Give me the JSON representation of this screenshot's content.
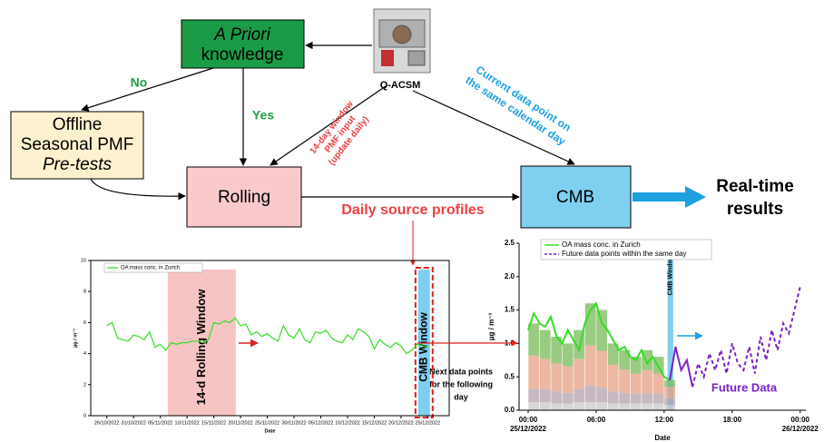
{
  "nodes": {
    "apriori": {
      "italic": "A Priori",
      "label": "knowledge"
    },
    "qacsm": "Q-ACSM",
    "offline": {
      "line1": "Offline",
      "line2": "Seasonal PMF",
      "line3": "Pre-tests"
    },
    "rolling": "Rolling",
    "cmb": "CMB",
    "realtime": {
      "line1": "Real-time",
      "line2": "results"
    }
  },
  "edges": {
    "no": "No",
    "yes": "Yes",
    "pmf_input": [
      "14-day window",
      "PMF input",
      "(update daily)"
    ],
    "current": [
      "Current data point on",
      "the same calendar day"
    ]
  },
  "annotations": {
    "daily_profiles": "Daily source profiles",
    "next_points": [
      "Next data points",
      "for the following",
      "day"
    ],
    "future_data": "Future Data"
  },
  "charts": [
    {
      "type": "line",
      "legend": "OA mass conc. in Zurich",
      "ylabel": "µg / m⁻³",
      "xlabel": "Date",
      "window_label": "14-d Rolling Window",
      "cmb_label": "CMB Window",
      "color": "#33dd22",
      "values": [
        5.8,
        6.0,
        5.0,
        4.9,
        4.8,
        5.2,
        5.1,
        4.9,
        5.4,
        4.4,
        4.6,
        4.2,
        4.7,
        4.6,
        4.7,
        4.7,
        4.8,
        4.8,
        4.7,
        4.9,
        6.0,
        5.9,
        6.1,
        6.0,
        6.3,
        5.8,
        5.9,
        5.2,
        5.4,
        5.1,
        5.3,
        5.0,
        4.8,
        5.8,
        5.2,
        5.0,
        5.6,
        4.9,
        4.7,
        5.4,
        5.3,
        5.5,
        5.0,
        4.8,
        4.7,
        5.2,
        4.9,
        5.6,
        5.4,
        5.1,
        4.3,
        4.9,
        4.6,
        4.4,
        4.7,
        4.5,
        4.0,
        4.2,
        4.6,
        4.5,
        4.4
      ],
      "xlim": [
        -3,
        64
      ],
      "xticks": [
        {
          "value": 0,
          "label": "26/10/2022"
        },
        {
          "value": 5,
          "label": "31/10/2022"
        },
        {
          "value": 10,
          "label": "05/11/2022"
        },
        {
          "value": 15,
          "label": "10/11/2022"
        },
        {
          "value": 20,
          "label": "15/11/2022"
        },
        {
          "value": 25,
          "label": "20/11/2022"
        },
        {
          "value": 30,
          "label": "25/11/2022"
        },
        {
          "value": 35,
          "label": "30/11/2022"
        },
        {
          "value": 40,
          "label": "05/12/2022"
        },
        {
          "value": 45,
          "label": "10/12/2022"
        },
        {
          "value": 50,
          "label": "15/12/2022"
        },
        {
          "value": 55,
          "label": "20/12/2022"
        },
        {
          "value": 60,
          "label": "25/12/2022"
        }
      ],
      "ylim": [
        0,
        10
      ],
      "yticks": [
        0,
        2,
        4,
        6,
        8,
        10
      ]
    },
    {
      "type": "line",
      "ylabel": "µg / m⁻³",
      "xlabel": "Date",
      "cmb_label": "CMB Window",
      "xlim": [
        -0.8,
        24.5
      ],
      "xticks": [
        {
          "value": 0,
          "label": "00:00"
        },
        {
          "value": 6,
          "label": "06:00"
        },
        {
          "value": 12,
          "label": "12:00"
        },
        {
          "value": 18,
          "label": "18:00"
        },
        {
          "value": 24,
          "label": "00:00"
        }
      ],
      "xtick_dates": [
        {
          "value": 0,
          "label": "25/12/2022"
        },
        {
          "value": 24,
          "label": "26/12/2022"
        }
      ],
      "ylim": [
        0,
        2.5
      ],
      "yticks": [
        {
          "value": 0,
          "label": "0.0"
        },
        {
          "value": 0.5,
          "label": "0.5"
        },
        {
          "value": 1,
          "label": "1.0"
        },
        {
          "value": 1.5,
          "label": "1.5"
        },
        {
          "value": 2,
          "label": "2.0"
        },
        {
          "value": 2.5,
          "label": "2.5"
        }
      ],
      "bars": {
        "x": [
          0.5,
          1.5,
          2.5,
          3.5,
          4.5,
          5.5,
          6.5,
          7.5,
          8.5,
          9.5,
          10.5,
          11.5,
          12.5
        ],
        "components": [
          {
            "color": "#c9c9c9",
            "values": [
              0.12,
              0.12,
              0.1,
              0.1,
              0.12,
              0.12,
              0.12,
              0.1,
              0.1,
              0.1,
              0.1,
              0.1,
              0.08
            ]
          },
          {
            "color": "#b3a2ad",
            "values": [
              0.2,
              0.2,
              0.18,
              0.16,
              0.2,
              0.25,
              0.22,
              0.18,
              0.16,
              0.15,
              0.15,
              0.15,
              0.1
            ]
          },
          {
            "color": "#e5a083",
            "values": [
              0.5,
              0.45,
              0.42,
              0.4,
              0.45,
              0.6,
              0.55,
              0.4,
              0.35,
              0.3,
              0.35,
              0.3,
              0.17
            ]
          },
          {
            "color": "#77b95a",
            "values": [
              0.48,
              0.43,
              0.4,
              0.34,
              0.43,
              0.63,
              0.61,
              0.32,
              0.29,
              0.25,
              0.3,
              0.25,
              0.1
            ]
          }
        ]
      },
      "series": [
        {
          "name": "OA mass conc. in Zurich",
          "color": "#33dd22",
          "style": "solid",
          "x": [
            0,
            0.5,
            1,
            1.5,
            2,
            2.5,
            3,
            3.5,
            4,
            4.5,
            5,
            5.5,
            6,
            6.5,
            7,
            7.5,
            8,
            8.5,
            9,
            9.5,
            10,
            10.5,
            11,
            11.5,
            12,
            12.5
          ],
          "values": [
            1.2,
            1.45,
            1.3,
            1.25,
            1.4,
            1.1,
            1.0,
            1.2,
            1.05,
            0.9,
            1.3,
            1.5,
            1.6,
            1.3,
            1.2,
            1.05,
            0.9,
            0.95,
            0.8,
            0.75,
            0.9,
            0.7,
            0.8,
            0.65,
            0.5,
            0.45
          ]
        },
        {
          "color": "#7a22c8",
          "style": "solid",
          "x": [
            12.5,
            13,
            13.5,
            14,
            14.5
          ],
          "values": [
            0.45,
            0.95,
            0.6,
            0.75,
            0.35
          ]
        },
        {
          "name": "Future data points within the same day",
          "color": "#7a22c8",
          "style": "dashed",
          "x": [
            14.5,
            15,
            15.5,
            16,
            16.5,
            17,
            17.5,
            18,
            18.5,
            19,
            19.5,
            20,
            20.5,
            21,
            21.5,
            22,
            22.5,
            23,
            23.5,
            24
          ],
          "values": [
            0.35,
            0.7,
            0.5,
            0.85,
            0.6,
            0.9,
            0.55,
            1.0,
            0.7,
            0.6,
            0.95,
            0.55,
            1.1,
            0.75,
            1.2,
            0.9,
            1.3,
            1.15,
            1.5,
            1.85
          ]
        }
      ]
    }
  ]
}
